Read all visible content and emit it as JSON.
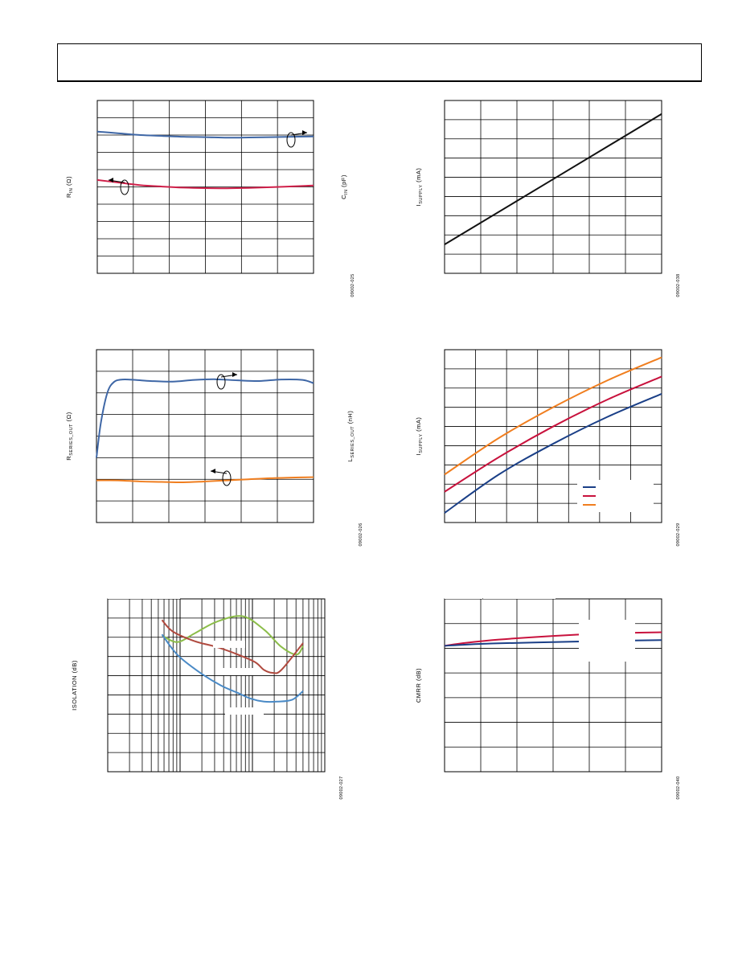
{
  "colors": {
    "blue": "#3f67a6",
    "red": "#d0204a",
    "orange": "#f07e1f",
    "navy": "#1a3f87",
    "crimson": "#c8123d",
    "green": "#8cbd4a",
    "brown": "#b04a3f",
    "steel": "#4a8ac6",
    "black": "#111111"
  },
  "charts": [
    {
      "id": "fig-rin-cin",
      "ylabel_left": "R",
      "ylabel_left_sub": "IN",
      "ylabel_left_unit": " (Ω)",
      "ylabel_right": "C",
      "ylabel_right_sub": "IN",
      "ylabel_right_unit": " (pF)",
      "figure_id": "09002-025"
    },
    {
      "id": "fig-isupply-1",
      "ylabel_left": "I",
      "ylabel_left_sub": "SUPPLY",
      "ylabel_left_unit": " (mA)",
      "figure_id": "09002-038"
    },
    {
      "id": "fig-rseries-lseries",
      "ylabel_left": "R",
      "ylabel_left_sub": "SERIES_OUT",
      "ylabel_left_unit": " (Ω)",
      "ylabel_right": "L",
      "ylabel_right_sub": "SERIES_OUT",
      "ylabel_right_unit": " (nH)",
      "figure_id": "09002-026"
    },
    {
      "id": "fig-isupply-2",
      "ylabel_left": "I",
      "ylabel_left_sub": "SUPPLY",
      "ylabel_left_unit": " (mA)",
      "figure_id": "09002-029"
    },
    {
      "id": "fig-isolation",
      "ylabel_left": "ISOLATION (dB)",
      "figure_id": "09002-027"
    },
    {
      "id": "fig-cmrr",
      "ylabel_left": "CMRR (dB)",
      "figure_id": "09002-040"
    }
  ],
  "chart_data": [
    {
      "type": "line",
      "series": [
        {
          "x": [
            0,
            0.1,
            0.2,
            0.3,
            0.4,
            0.5,
            0.6,
            0.7,
            0.8,
            0.9,
            1.0
          ],
          "y": [
            8.2,
            8.1,
            8.0,
            7.95,
            7.9,
            7.88,
            7.85,
            7.86,
            7.88,
            7.9,
            7.92
          ]
        },
        {
          "x": [
            0,
            0.1,
            0.2,
            0.3,
            0.4,
            0.5,
            0.6,
            0.7,
            0.8,
            0.9,
            1.0
          ],
          "y": [
            5.4,
            5.25,
            5.1,
            5.02,
            4.96,
            4.93,
            4.92,
            4.94,
            4.98,
            5.03,
            5.08
          ]
        }
      ],
      "xlim": [
        0,
        1
      ],
      "ylim": [
        0,
        10
      ],
      "grid": true,
      "x_divisions": 6,
      "y_divisions": 10
    },
    {
      "type": "line",
      "series": [
        {
          "x": [
            0,
            1
          ],
          "y": [
            1.5,
            8.3
          ]
        }
      ],
      "xlim": [
        0,
        1
      ],
      "ylim": [
        0,
        9
      ],
      "grid": true,
      "x_divisions": 6,
      "y_divisions": 9
    },
    {
      "type": "line",
      "series": [
        {
          "x": [
            0,
            0.02,
            0.05,
            0.08,
            0.12,
            0.18,
            0.25,
            0.35,
            0.45,
            0.55,
            0.65,
            0.75,
            0.85,
            0.95,
            1.0
          ],
          "y": [
            3.0,
            4.6,
            6.0,
            6.5,
            6.62,
            6.6,
            6.55,
            6.52,
            6.6,
            6.63,
            6.58,
            6.55,
            6.62,
            6.6,
            6.45
          ]
        },
        {
          "x": [
            0,
            0.1,
            0.2,
            0.3,
            0.4,
            0.5,
            0.6,
            0.7,
            0.8,
            0.9,
            1.0
          ],
          "y": [
            1.95,
            1.95,
            1.9,
            1.88,
            1.86,
            1.9,
            1.95,
            2.0,
            2.05,
            2.08,
            2.1
          ]
        }
      ],
      "xlim": [
        0,
        1
      ],
      "ylim": [
        0,
        8
      ],
      "grid": true,
      "x_divisions": 6,
      "y_divisions": 8
    },
    {
      "type": "line",
      "series": [
        {
          "x": [
            0,
            0.25,
            0.5,
            0.75,
            1.0
          ],
          "y": [
            0.5,
            2.5,
            4.1,
            5.5,
            6.7
          ]
        },
        {
          "x": [
            0,
            0.25,
            0.5,
            0.75,
            1.0
          ],
          "y": [
            1.6,
            3.4,
            5.0,
            6.4,
            7.6
          ]
        },
        {
          "x": [
            0,
            0.25,
            0.5,
            0.75,
            1.0
          ],
          "y": [
            2.5,
            4.4,
            6.0,
            7.4,
            8.6
          ]
        }
      ],
      "xlim": [
        0,
        1
      ],
      "ylim": [
        0,
        9
      ],
      "grid": true,
      "x_divisions": 7,
      "y_divisions": 9
    },
    {
      "type": "line",
      "x_scale": "log",
      "series": [
        {
          "x": [
            0.25,
            0.32,
            0.4,
            0.5,
            0.62,
            0.72,
            0.8,
            0.87,
            0.9
          ],
          "y": [
            7.1,
            6.75,
            7.2,
            7.8,
            8.1,
            7.4,
            6.5,
            6.1,
            6.55
          ]
        },
        {
          "x": [
            0.25,
            0.3,
            0.4,
            0.5,
            0.6,
            0.68,
            0.72,
            0.76,
            0.8,
            0.9
          ],
          "y": [
            7.9,
            7.3,
            6.8,
            6.5,
            6.1,
            5.7,
            5.3,
            5.15,
            5.3,
            6.7
          ]
        },
        {
          "x": [
            0.25,
            0.32,
            0.42,
            0.52,
            0.6,
            0.66,
            0.72,
            0.78,
            0.85,
            0.9
          ],
          "y": [
            7.15,
            6.1,
            5.2,
            4.5,
            4.1,
            3.8,
            3.65,
            3.65,
            3.75,
            4.2
          ]
        }
      ],
      "xlim": [
        0,
        1
      ],
      "ylim": [
        0,
        9
      ],
      "grid": true,
      "y_divisions": 9
    },
    {
      "type": "line",
      "series": [
        {
          "x": [
            0,
            0.1,
            0.25,
            0.5,
            0.75,
            1.0
          ],
          "y": [
            5.1,
            5.22,
            5.35,
            5.5,
            5.6,
            5.65
          ]
        },
        {
          "x": [
            0,
            0.1,
            0.25,
            0.5,
            0.75,
            1.0
          ],
          "y": [
            5.1,
            5.15,
            5.2,
            5.25,
            5.3,
            5.33
          ]
        }
      ],
      "xlim": [
        0,
        1
      ],
      "ylim": [
        0,
        7
      ],
      "grid": true,
      "x_divisions": 6,
      "y_divisions": 7
    }
  ]
}
